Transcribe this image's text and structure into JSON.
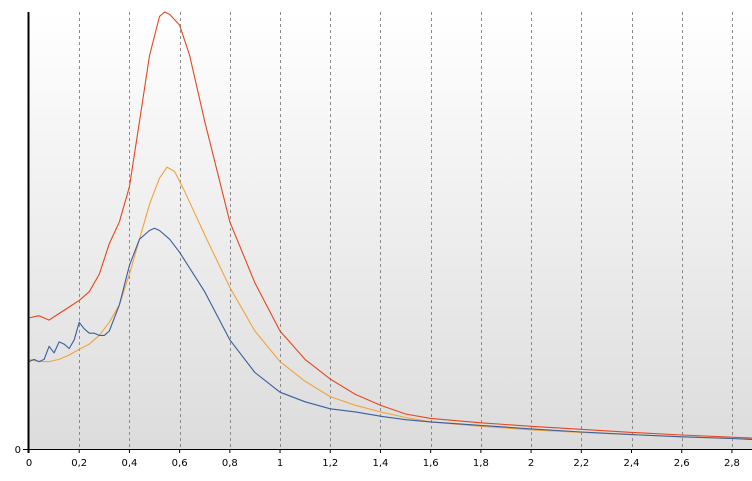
{
  "chart_data": {
    "type": "line",
    "title": "",
    "xlabel": "",
    "ylabel": "",
    "xlim": [
      0,
      2.88
    ],
    "ylim": [
      0,
      1.0
    ],
    "grid": {
      "vertical": true,
      "horizontal": false,
      "style": "dashed"
    },
    "legend": "none",
    "x_tick_values": [
      0,
      0.2,
      0.4,
      0.6,
      0.8,
      1,
      1.2,
      1.4,
      1.6,
      1.8,
      2,
      2.2,
      2.4,
      2.6,
      2.8
    ],
    "x_tick_labels": [
      "0",
      "0,2",
      "0,4",
      "0,6",
      "0,8",
      "1",
      "1,2",
      "1,4",
      "1,6",
      "1,8",
      "2",
      "2,2",
      "2,4",
      "2,6",
      "2,8"
    ],
    "y_tick_values": [
      0
    ],
    "y_tick_labels": [
      "0"
    ],
    "series": [
      {
        "color": "#e8461c",
        "x": [
          0,
          0.04,
          0.08,
          0.12,
          0.16,
          0.2,
          0.24,
          0.28,
          0.32,
          0.36,
          0.4,
          0.44,
          0.48,
          0.52,
          0.54,
          0.56,
          0.6,
          0.64,
          0.7,
          0.8,
          0.9,
          1.0,
          1.1,
          1.2,
          1.3,
          1.4,
          1.5,
          1.6,
          1.8,
          2.0,
          2.2,
          2.4,
          2.6,
          2.8,
          2.88
        ],
        "y": [
          0.3,
          0.305,
          0.295,
          0.31,
          0.325,
          0.34,
          0.36,
          0.4,
          0.47,
          0.52,
          0.6,
          0.75,
          0.9,
          0.99,
          1.0,
          0.995,
          0.97,
          0.9,
          0.75,
          0.52,
          0.38,
          0.27,
          0.205,
          0.16,
          0.125,
          0.1,
          0.08,
          0.07,
          0.06,
          0.052,
          0.045,
          0.038,
          0.032,
          0.027,
          0.025
        ]
      },
      {
        "color": "#f2a33a",
        "x": [
          0,
          0.04,
          0.08,
          0.12,
          0.16,
          0.2,
          0.24,
          0.28,
          0.32,
          0.36,
          0.4,
          0.44,
          0.48,
          0.52,
          0.55,
          0.58,
          0.62,
          0.7,
          0.8,
          0.9,
          1.0,
          1.1,
          1.2,
          1.3,
          1.4,
          1.5,
          1.6,
          1.8,
          2.0,
          2.2,
          2.4,
          2.6,
          2.8,
          2.88
        ],
        "y": [
          0.205,
          0.2,
          0.2,
          0.205,
          0.215,
          0.228,
          0.24,
          0.26,
          0.29,
          0.33,
          0.4,
          0.48,
          0.56,
          0.62,
          0.645,
          0.635,
          0.59,
          0.49,
          0.37,
          0.27,
          0.2,
          0.155,
          0.12,
          0.1,
          0.085,
          0.072,
          0.062,
          0.052,
          0.044,
          0.038,
          0.033,
          0.028,
          0.024,
          0.022
        ]
      },
      {
        "color": "#3a5e9e",
        "x": [
          0,
          0.02,
          0.04,
          0.06,
          0.08,
          0.1,
          0.12,
          0.14,
          0.16,
          0.18,
          0.2,
          0.22,
          0.24,
          0.26,
          0.28,
          0.3,
          0.32,
          0.36,
          0.4,
          0.44,
          0.48,
          0.5,
          0.52,
          0.56,
          0.6,
          0.7,
          0.8,
          0.9,
          1.0,
          1.1,
          1.2,
          1.3,
          1.4,
          1.5,
          1.6,
          1.8,
          2.0,
          2.2,
          2.4,
          2.6,
          2.8,
          2.88
        ],
        "y": [
          0.2,
          0.205,
          0.2,
          0.205,
          0.235,
          0.22,
          0.245,
          0.24,
          0.23,
          0.25,
          0.29,
          0.275,
          0.265,
          0.265,
          0.26,
          0.26,
          0.27,
          0.33,
          0.42,
          0.48,
          0.5,
          0.505,
          0.5,
          0.48,
          0.45,
          0.36,
          0.25,
          0.175,
          0.13,
          0.108,
          0.092,
          0.085,
          0.075,
          0.067,
          0.062,
          0.054,
          0.046,
          0.039,
          0.033,
          0.028,
          0.024,
          0.022
        ]
      }
    ]
  }
}
